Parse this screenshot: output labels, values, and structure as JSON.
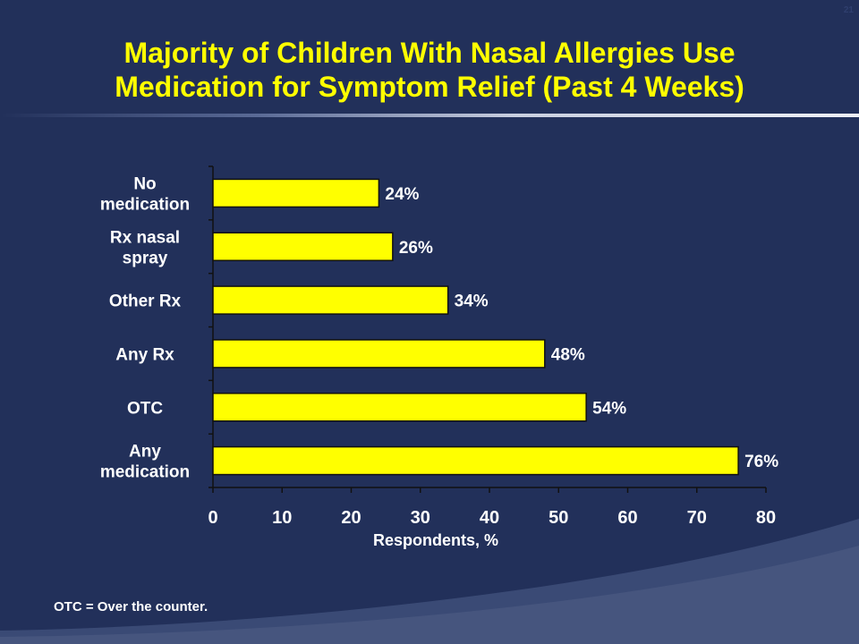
{
  "slide": {
    "page_number": "21",
    "title_lines": [
      "Majority of Children With Nasal Allergies Use",
      "Medication for Symptom Relief (Past 4 Weeks)"
    ],
    "footnote": "OTC = Over the counter.",
    "colors": {
      "background": "#22305a",
      "title": "#ffff00",
      "bar_fill": "#ffff00",
      "bar_stroke": "#111111",
      "text": "#ffffff"
    }
  },
  "chart_data": {
    "type": "bar",
    "orientation": "horizontal",
    "categories": [
      [
        "No",
        "medication"
      ],
      [
        "Rx nasal",
        "spray"
      ],
      [
        "Other Rx"
      ],
      [
        "Any Rx"
      ],
      [
        "OTC"
      ],
      [
        "Any",
        "medication"
      ]
    ],
    "values": [
      24,
      26,
      34,
      48,
      54,
      76
    ],
    "data_labels": [
      "24%",
      "26%",
      "34%",
      "48%",
      "54%",
      "76%"
    ],
    "xlabel": "Respondents, %",
    "xlim": [
      0,
      80
    ],
    "xticks": [
      "0",
      "10",
      "20",
      "30",
      "40",
      "50",
      "60",
      "70",
      "80"
    ],
    "grid": false
  }
}
